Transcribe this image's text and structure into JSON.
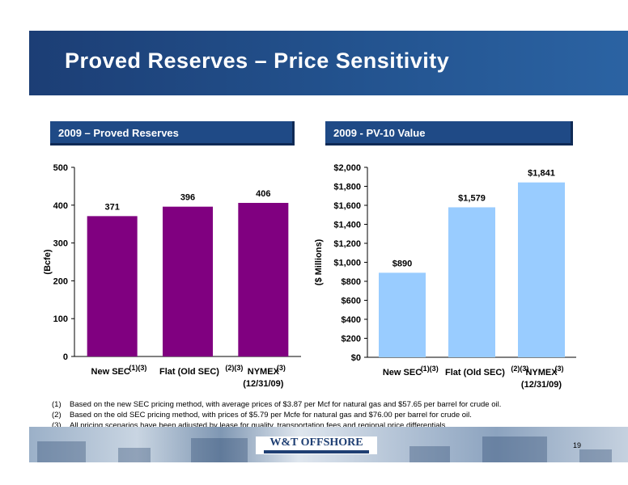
{
  "slide": {
    "title": "Proved Reserves – Price Sensitivity",
    "page_number": "19",
    "logo_text": "W&T OFFSHORE"
  },
  "colors": {
    "title_band": "#23538f",
    "panel_header": "#1f4a86",
    "reserves_bar": "#800080",
    "pv10_bar": "#99ccff"
  },
  "footnotes": [
    {
      "num": "(1)",
      "text": "Based on the new SEC pricing method, with average prices of $3.87 per Mcf for natural gas and $57.65 per barrel for crude oil."
    },
    {
      "num": "(2)",
      "text": "Based on the old SEC pricing method, with prices of $5.79 per Mcfe for natural gas and $76.00 per barrel for crude oil."
    },
    {
      "num": "(3)",
      "text": "All pricing scenarios have been adjusted by lease for quality, transportation fees and regional price differentials."
    }
  ],
  "chart_data": [
    {
      "type": "bar",
      "title": "2009 – Proved Reserves",
      "ylabel": "(Bcfe)",
      "ylim": [
        0,
        500
      ],
      "yticks": [
        "0",
        "100",
        "200",
        "300",
        "400",
        "500"
      ],
      "grid": false,
      "categories": [
        "New SEC",
        "Flat (Old SEC)",
        "NYMEX"
      ],
      "category_superscripts": [
        "(1)(3)",
        "(2)(3)",
        "(3)"
      ],
      "category_sublabels": [
        "",
        "",
        "(12/31/09)"
      ],
      "values": [
        371,
        396,
        406
      ],
      "data_labels": [
        "371",
        "396",
        "406"
      ]
    },
    {
      "type": "bar",
      "title": "2009 - PV-10 Value",
      "ylabel": "($ Millions)",
      "ylim": [
        0,
        2000
      ],
      "yticks": [
        "$0",
        "$200",
        "$400",
        "$600",
        "$800",
        "$1,000",
        "$1,200",
        "$1,400",
        "$1,600",
        "$1,800",
        "$2,000"
      ],
      "grid": false,
      "categories": [
        "New SEC",
        "Flat (Old SEC)",
        "NYMEX"
      ],
      "category_superscripts": [
        "(1)(3)",
        "(2)(3)",
        "(3)"
      ],
      "category_sublabels": [
        "",
        "",
        "(12/31/09)"
      ],
      "values": [
        890,
        1579,
        1841
      ],
      "data_labels": [
        "$890",
        "$1,579",
        "$1,841"
      ]
    }
  ]
}
